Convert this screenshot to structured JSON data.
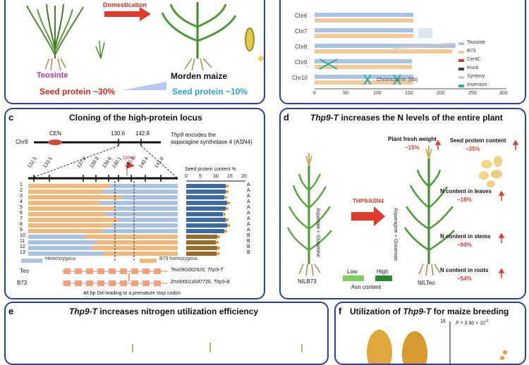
{
  "panel_a": {
    "arrow_label": "Domestication",
    "teosinte": "Teosinte",
    "maize": "Morden maize",
    "protein_teosinte": "Seed protein ~30%",
    "protein_maize": "Seed protein ~10%"
  },
  "panel_b": {
    "chromosomes": [
      "Chr6",
      "Chr7",
      "Chr8",
      "Chr9",
      "Chr10"
    ],
    "xlabel": "Chromosome (Mb)",
    "ticks": [
      "0",
      "50",
      "100",
      "150",
      "200",
      "250",
      "300"
    ],
    "legend": [
      "Teosinte",
      "B73",
      "CentC",
      "Knob",
      "Synteny",
      "Inversion"
    ]
  },
  "panel_c": {
    "letter": "c",
    "title": "Cloning of the high-protein locus",
    "chr": "Chr9",
    "cen": "CEN",
    "pos1": "130.6",
    "pos2": "142.8",
    "desc1": "encodes the",
    "gene_ital": "Thp9",
    "desc2": "asparagine synthetase 4 (ASN4)",
    "del": "Del48",
    "markers": [
      "132.5",
      "133.5",
      "137.8",
      "139.3",
      "139.8",
      "140.1",
      "140.3",
      "140.4",
      "141.0"
    ],
    "axis_title": "Seed protein content %",
    "axis_ticks": [
      "0",
      "5",
      "10",
      "15",
      "20"
    ],
    "rows": [
      "1",
      "2",
      "3",
      "4",
      "5",
      "6",
      "7",
      "8",
      "9",
      "10",
      "11",
      "12",
      "13"
    ],
    "groups": [
      "A",
      "A",
      "A",
      "A",
      "A",
      "A",
      "A",
      "A",
      "A",
      "B",
      "B",
      "B",
      "B"
    ],
    "legend_het": "Heterozygous",
    "legend_b73": "B73 homozygous",
    "teo": "Teo",
    "b73": "B73",
    "teo_gene": "Teo09G002926, Thp9-T",
    "b73_gene": "Zm00001d047736, Thp9-B",
    "footnote": "48 bp Del leading to a premature stop codon"
  },
  "panel_d": {
    "letter": "d",
    "title_gene": "Thp9-T",
    "title_rest": " increases the N levels of the entire plant",
    "left_vert": "Aspartate + Glutamine",
    "right_vert": "Asparagine + Glutamine",
    "enzyme": "THP9/ASN4",
    "fresh": "Plant fresh weight",
    "fresh_val": "~15%",
    "seed": "Seed protein content",
    "seed_val": "~35%",
    "leaves": "N content in leaves",
    "leaves_val": "~18%",
    "stems": "N content in stems",
    "stems_val": "~94%",
    "roots": "N content in roots",
    "roots_val": "~54%",
    "low": "Low",
    "high": "High",
    "asn": "Asn content",
    "nilb": "NILB73",
    "nilteo": "NILTeo"
  },
  "panel_e": {
    "letter": "e",
    "title_gene": "Thp9-T",
    "title_rest": " increases nitrogen utilization efficiency"
  },
  "panel_f": {
    "letter": "f",
    "title_pre": "Utilization of ",
    "title_gene": "Thp9-T",
    "title_rest": " for maize breeding",
    "ytick": "16",
    "pval": "P = 3.90 × 10",
    "pexp": "-5"
  },
  "colors": {
    "frame": "#2b3fa0",
    "red": "#e03a2c",
    "teal": "#2aa4c4",
    "orange": "#f2b77a",
    "blue_bar": "#a9c4e3"
  }
}
